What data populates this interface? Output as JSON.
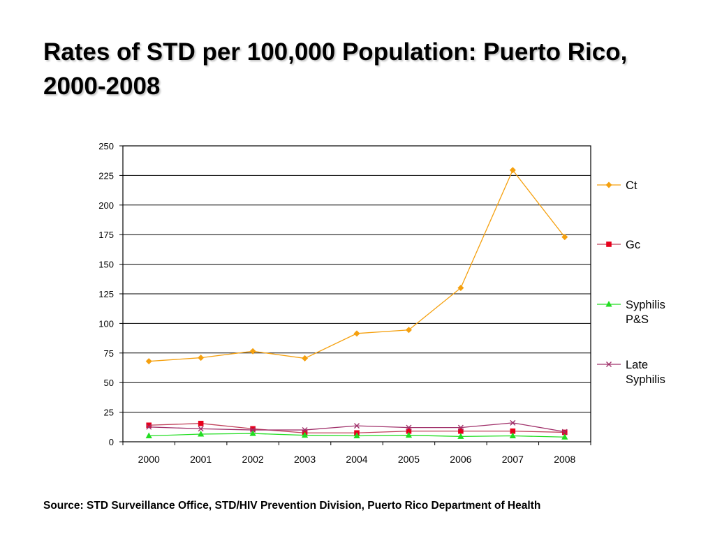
{
  "title": "Rates of STD per 100,000 Population: Puerto Rico, 2000-2008",
  "source": "Source: STD Surveillance Office, STD/HIV Prevention Division, Puerto Rico Department of Health",
  "chart_data": {
    "type": "line",
    "title": "",
    "xlabel": "",
    "ylabel": "",
    "x": [
      "2000",
      "2001",
      "2002",
      "2003",
      "2004",
      "2005",
      "2006",
      "2007",
      "2008"
    ],
    "ylim": [
      0,
      250
    ],
    "yticks": [
      0,
      25,
      50,
      75,
      100,
      125,
      150,
      175,
      200,
      225,
      250
    ],
    "grid": true,
    "legend": "right",
    "series": [
      {
        "name": "Ct",
        "color": "#F5A00E",
        "marker": "diamond",
        "values": [
          68,
          71,
          76.5,
          70.5,
          91.5,
          94.5,
          130,
          229.5,
          173
        ]
      },
      {
        "name": "Gc",
        "color": "#E8001C",
        "line_color": "#C0405A",
        "marker": "square",
        "values": [
          14,
          15.5,
          11,
          7.5,
          7.5,
          9,
          9,
          9,
          8
        ]
      },
      {
        "name": "Syphilis P&S",
        "color": "#22DD22",
        "marker": "triangle",
        "values": [
          5,
          6.5,
          7,
          5.5,
          5,
          5.5,
          4.5,
          5,
          4
        ]
      },
      {
        "name": "Late Syphilis",
        "color": "#A0306A",
        "marker": "x",
        "values": [
          12.5,
          11,
          10,
          10,
          13.5,
          12,
          12,
          16,
          8.5
        ]
      }
    ]
  }
}
